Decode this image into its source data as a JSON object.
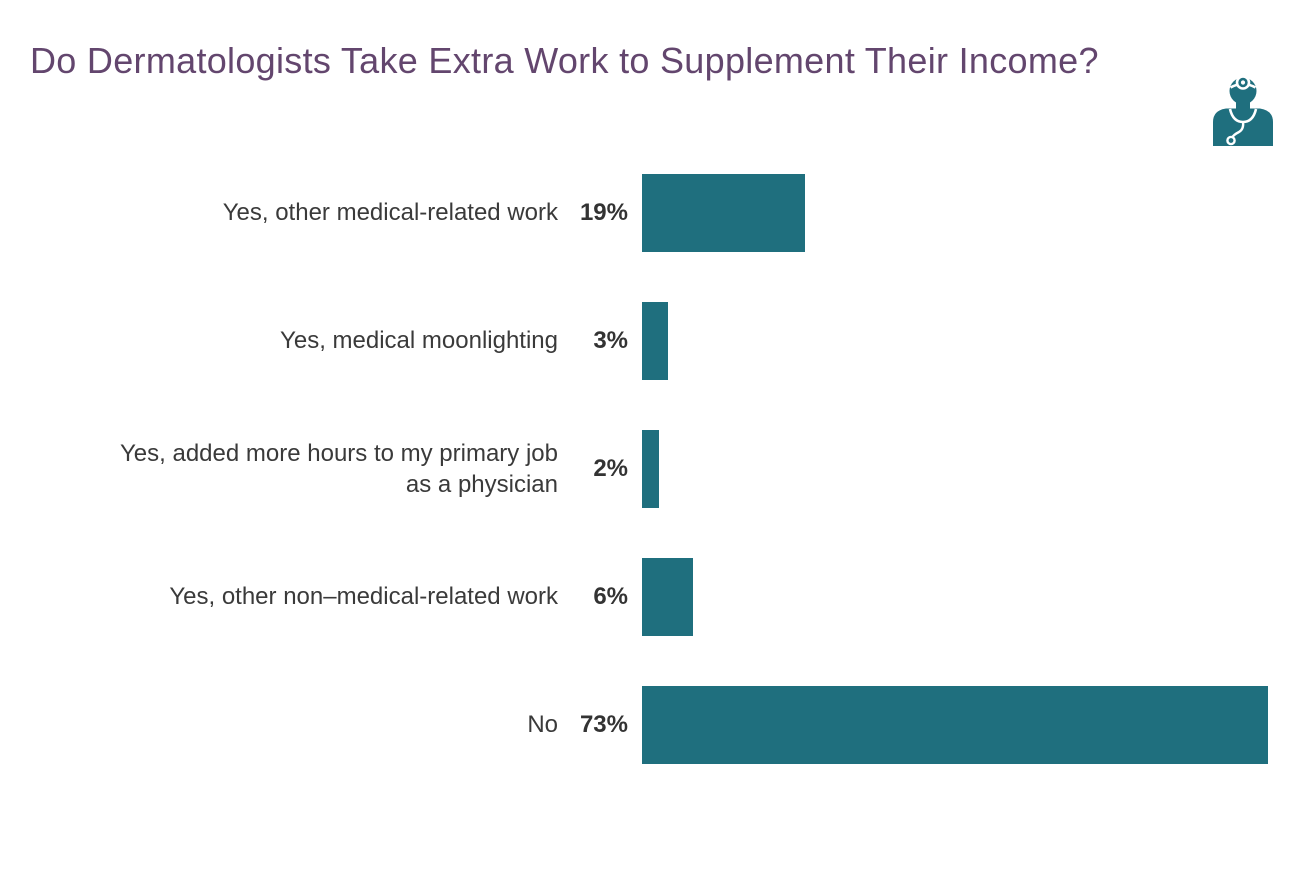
{
  "header": {
    "title_color": "#63466E",
    "icon": "doctor-with-stethoscope-icon",
    "icon_color": "#1F6F7E"
  },
  "chart_data": {
    "type": "bar",
    "orientation": "horizontal",
    "title": "Do Dermatologists Take Extra Work to Supplement Their Income?",
    "categories": [
      "Yes, other medical-related work",
      "Yes, medical moonlighting",
      "Yes, added more hours to my primary job\nas a physician",
      "Yes, other non–medical-related work",
      "No"
    ],
    "values": [
      19,
      3,
      2,
      6,
      73
    ],
    "value_labels": [
      "19%",
      "3%",
      "2%",
      "6%",
      "73%"
    ],
    "xlim": [
      0,
      73
    ],
    "bar_color": "#1F6F7E",
    "category_label_color": "#3A3A3A",
    "value_label_color": "#333333",
    "grid": false,
    "legend": "none",
    "value_label_position": "left-of-bar",
    "background": "#ffffff"
  }
}
